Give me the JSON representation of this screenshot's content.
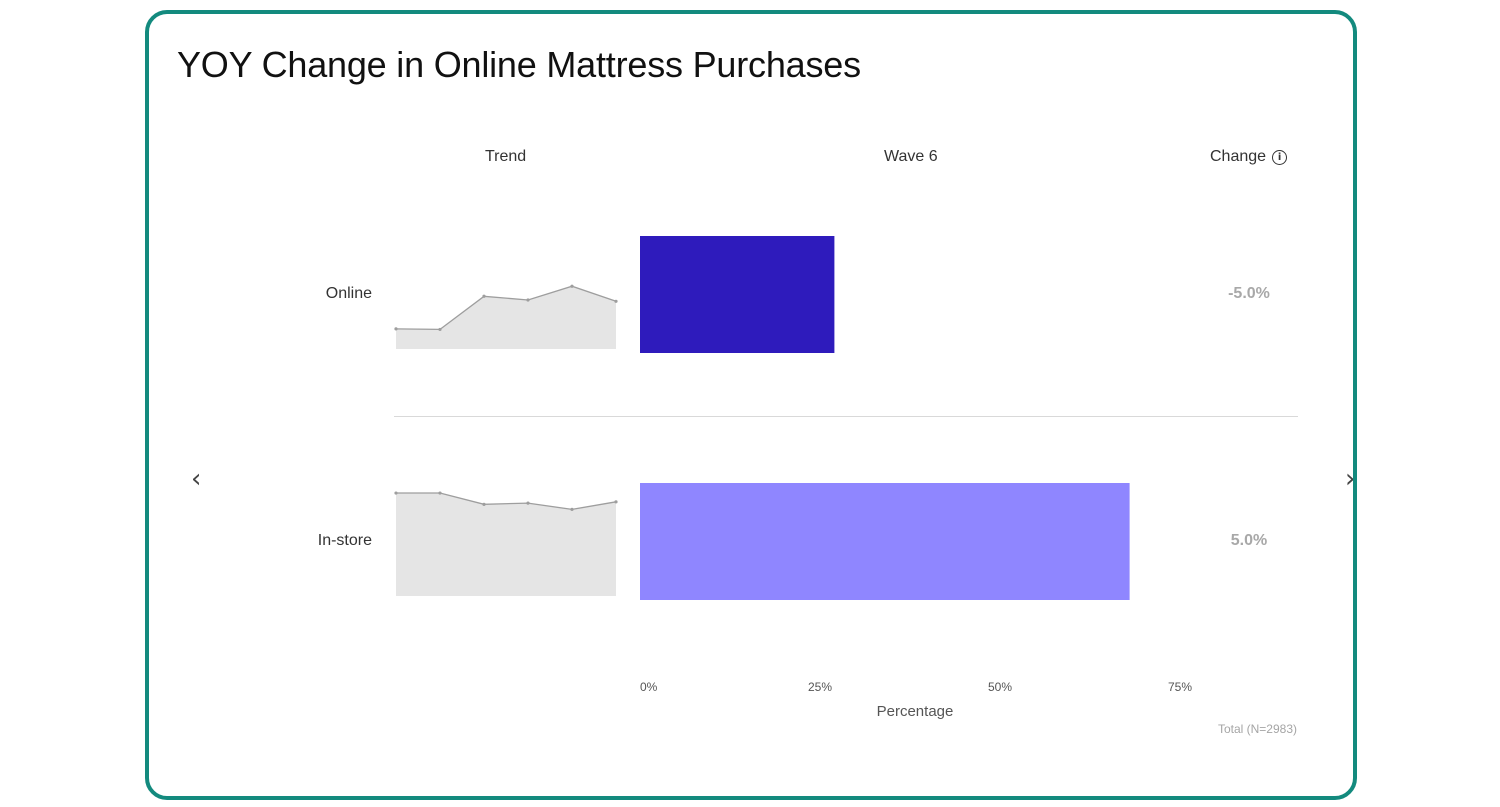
{
  "title": "YOY Change in Online Mattress Purchases",
  "headers": {
    "trend": "Trend",
    "wave": "Wave 6",
    "change": "Change"
  },
  "total_label": "Total (N=2983)",
  "icons": {
    "info": "info-icon",
    "prev": "chevron-left-icon",
    "next": "chevron-right-icon"
  },
  "colors": {
    "border": "#138a7e",
    "online_bar": "#2e1bbc",
    "instore_bar": "#8f86ff",
    "trend_fill": "#e5e5e5",
    "trend_line": "#9e9e9e",
    "change_text": "#a8a8a8"
  },
  "chart_data": {
    "type": "bar",
    "orientation": "horizontal",
    "title": "YOY Change in Online Mattress Purchases",
    "categories": [
      "Online",
      "In-store"
    ],
    "values": [
      27,
      68
    ],
    "change": [
      "-5.0%",
      "5.0%"
    ],
    "xlabel": "Percentage",
    "xlim": [
      0,
      75
    ],
    "xticks": [
      "0%",
      "25%",
      "50%",
      "75%"
    ],
    "trend": [
      [
        38,
        37.8,
        51,
        49.5,
        55,
        49
      ],
      [
        71,
        71,
        66.5,
        67,
        64.5,
        67.5
      ]
    ]
  }
}
